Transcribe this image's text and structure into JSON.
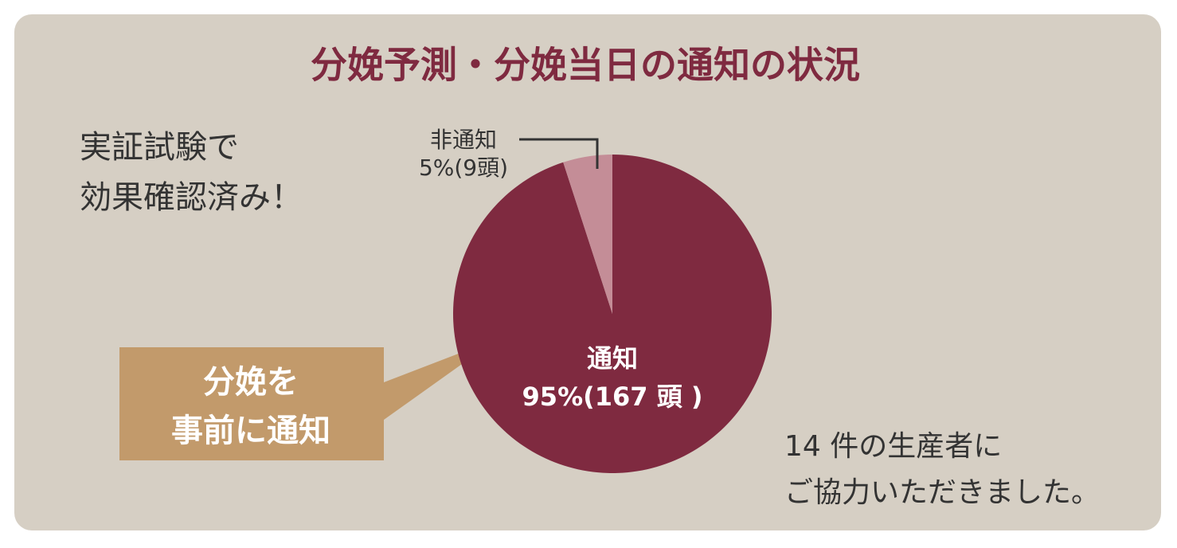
{
  "chart_data": {
    "type": "pie",
    "title": "分娩予測・分娩当日の通知の状況",
    "categories": [
      "通知",
      "非通知"
    ],
    "values": [
      95,
      5
    ],
    "value_labels": [
      "95%(167 頭 )",
      "5%(9頭)"
    ],
    "colors": [
      "#7f2a40",
      "#c48d97"
    ],
    "annotations": {
      "claim": [
        "実証試験で",
        "効果確認済み！"
      ],
      "callout": [
        "分娩を",
        "事前に通知"
      ],
      "footer": [
        "14 件の生産者に",
        "ご協力いただきました。"
      ]
    }
  }
}
